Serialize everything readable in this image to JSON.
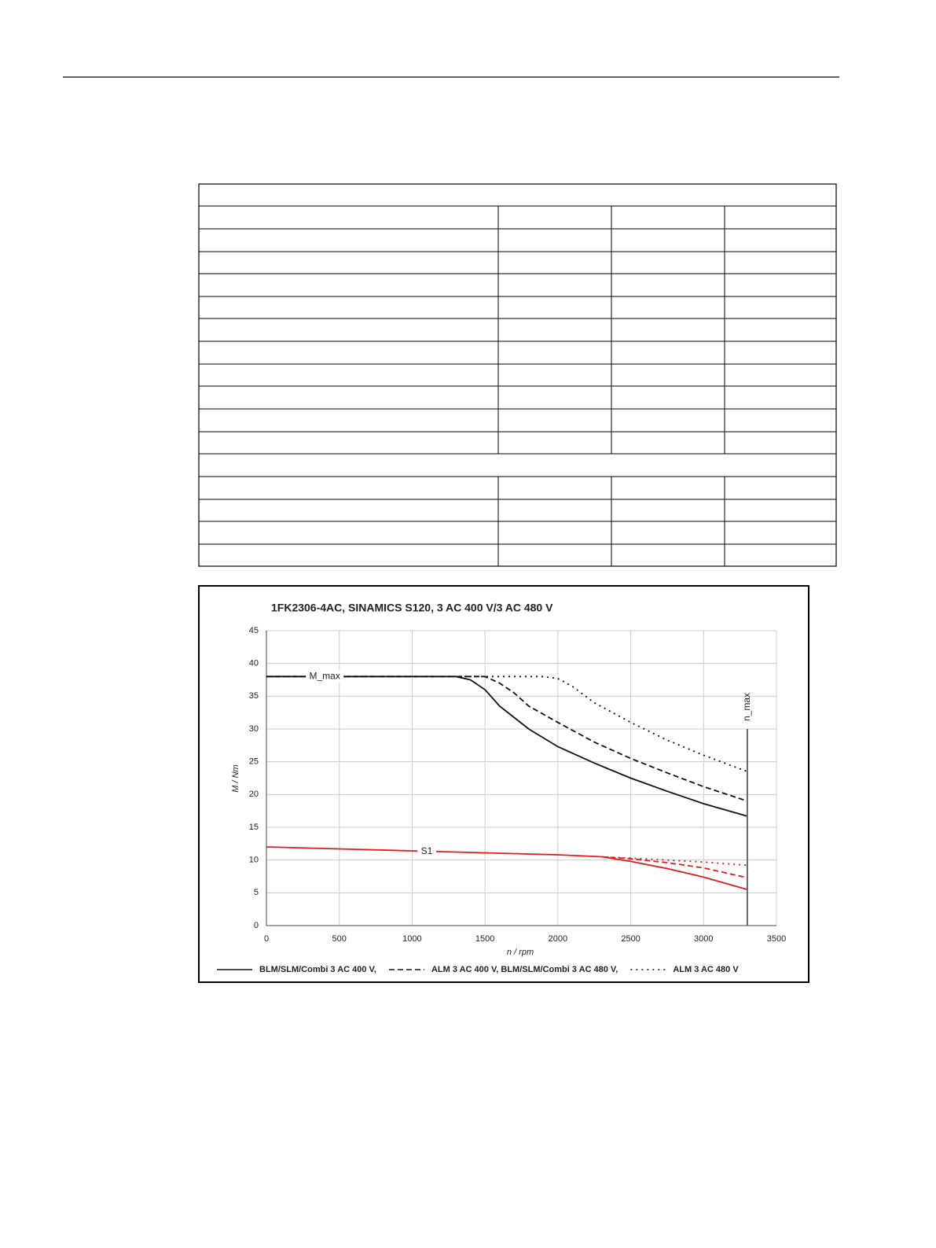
{
  "chart_data": {
    "type": "line",
    "title": "1FK2306-4AC, SINAMICS S120, 3 AC 400 V/3 AC 480 V",
    "x_label": "n / rpm",
    "y_label": "M / Nm",
    "xlim": [
      0,
      3500
    ],
    "ylim": [
      0,
      45
    ],
    "xticks": [
      0,
      500,
      1000,
      1500,
      2000,
      2500,
      3000,
      3500
    ],
    "yticks": [
      0,
      5,
      10,
      15,
      20,
      25,
      30,
      35,
      40,
      45
    ],
    "grid": true,
    "legend": [
      {
        "label": "BLM/SLM/Combi 3 AC 400 V,",
        "dash": "solid"
      },
      {
        "label": "ALM 3 AC 400 V, BLM/SLM/Combi 3 AC 480 V,",
        "dash": "dashed"
      },
      {
        "label": "ALM 3 AC 480 V",
        "dash": "dotted"
      }
    ],
    "series": [
      {
        "color": "#111111",
        "dash": "solid",
        "x": [
          0,
          1300,
          1400,
          1500,
          1600,
          1800,
          2000,
          2250,
          2500,
          2750,
          3000,
          3300
        ],
        "values": [
          38,
          38,
          37.5,
          36,
          33.5,
          30,
          27.3,
          24.8,
          22.5,
          20.5,
          18.6,
          16.7
        ]
      },
      {
        "color": "#111111",
        "dash": "dashed",
        "x": [
          0,
          1500,
          1600,
          1700,
          1800,
          2000,
          2250,
          2500,
          2750,
          3000,
          3300
        ],
        "values": [
          38,
          38,
          37,
          35.5,
          33.5,
          31,
          28,
          25.5,
          23.3,
          21.2,
          19
        ]
      },
      {
        "color": "#111111",
        "dash": "dotted",
        "x": [
          0,
          1900,
          2000,
          2100,
          2250,
          2500,
          2750,
          3000,
          3300
        ],
        "values": [
          38,
          38,
          37.7,
          36.5,
          34,
          31,
          28.3,
          26,
          23.5
        ]
      },
      {
        "color": "#e8191c",
        "dash": "solid",
        "x": [
          0,
          500,
          1000,
          1500,
          2000,
          2300,
          2500,
          2750,
          3000,
          3300
        ],
        "values": [
          12,
          11.7,
          11.4,
          11.1,
          10.8,
          10.5,
          9.8,
          8.7,
          7.4,
          5.5
        ]
      },
      {
        "color": "#e8191c",
        "dash": "dashed",
        "x": [
          2300,
          2500,
          2750,
          3000,
          3300
        ],
        "values": [
          10.5,
          10.2,
          9.6,
          8.8,
          7.3
        ]
      },
      {
        "color": "#e8191c",
        "dash": "dotted",
        "x": [
          2300,
          2500,
          2750,
          3000,
          3300
        ],
        "values": [
          10.5,
          10.3,
          10,
          9.7,
          9.2
        ]
      }
    ],
    "annotations": [
      {
        "text": "M_max",
        "x": 400,
        "y": 38,
        "color": "#111111"
      },
      {
        "text": "S1",
        "x": 1100,
        "y": 11.3,
        "color": "#e8191c"
      }
    ],
    "n_max": {
      "text": "n_max",
      "x": 3300,
      "y": 30
    }
  }
}
